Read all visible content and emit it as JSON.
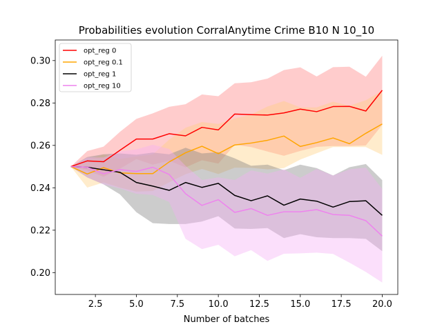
{
  "chart_data": {
    "type": "line",
    "title": "Probabilities evolution CorralAnytime Crime B10 N 10_10",
    "xlabel": "Number of batches",
    "ylabel": "",
    "xlim": [
      0.05,
      20.95
    ],
    "ylim": [
      0.1897,
      0.3097
    ],
    "xticks": [
      2.5,
      5.0,
      7.5,
      10.0,
      12.5,
      15.0,
      17.5,
      20.0
    ],
    "xtick_labels": [
      "2.5",
      "5.0",
      "7.5",
      "10.0",
      "12.5",
      "15.0",
      "17.5",
      "20.0"
    ],
    "yticks": [
      0.2,
      0.22,
      0.24,
      0.26,
      0.28,
      0.3
    ],
    "ytick_labels": [
      "0.20",
      "0.22",
      "0.24",
      "0.26",
      "0.28",
      "0.30"
    ],
    "grid": false,
    "legend_position": "top-left",
    "x": [
      1,
      2,
      3,
      4,
      5,
      6,
      7,
      8,
      9,
      10,
      11,
      12,
      13,
      14,
      15,
      16,
      17,
      18,
      19,
      20
    ],
    "series": [
      {
        "name": "opt_reg 0",
        "color": "#ff0000",
        "band_color": "#ff8080",
        "values": [
          0.25,
          0.2527,
          0.2523,
          0.2577,
          0.263,
          0.263,
          0.2655,
          0.2645,
          0.2685,
          0.2673,
          0.2748,
          0.2745,
          0.2743,
          0.2753,
          0.2771,
          0.2759,
          0.2783,
          0.2784,
          0.2762,
          0.286
        ],
        "upper": [
          0.25,
          0.2573,
          0.2594,
          0.2664,
          0.2725,
          0.2751,
          0.2782,
          0.2794,
          0.284,
          0.2832,
          0.2893,
          0.2898,
          0.2915,
          0.2955,
          0.2968,
          0.2925,
          0.2969,
          0.2971,
          0.2924,
          0.3023
        ],
        "lower": [
          0.25,
          0.2481,
          0.2452,
          0.249,
          0.2535,
          0.2509,
          0.2528,
          0.2496,
          0.253,
          0.2514,
          0.2603,
          0.2592,
          0.2571,
          0.2551,
          0.2574,
          0.2593,
          0.2597,
          0.2597,
          0.26,
          0.2697
        ]
      },
      {
        "name": "opt_reg 0.1",
        "color": "#ffa500",
        "band_color": "#ffd080",
        "values": [
          0.25,
          0.2465,
          0.2495,
          0.247,
          0.2467,
          0.2467,
          0.2522,
          0.2565,
          0.2596,
          0.2561,
          0.2602,
          0.2611,
          0.2624,
          0.2644,
          0.2595,
          0.2613,
          0.2635,
          0.2608,
          0.2657,
          0.2701
        ],
        "upper": [
          0.25,
          0.253,
          0.2558,
          0.2536,
          0.2548,
          0.2557,
          0.2627,
          0.2683,
          0.271,
          0.2701,
          0.2727,
          0.2745,
          0.2783,
          0.2809,
          0.2779,
          0.2779,
          0.2806,
          0.2787,
          0.2813,
          0.2857
        ],
        "lower": [
          0.25,
          0.2401,
          0.2425,
          0.2401,
          0.2382,
          0.2385,
          0.2426,
          0.2464,
          0.2489,
          0.2465,
          0.2495,
          0.2494,
          0.2487,
          0.2493,
          0.2533,
          0.2563,
          0.2592,
          0.2592,
          0.2592,
          0.2555
        ]
      },
      {
        "name": "opt_reg 1",
        "color": "#000000",
        "band_color": "#808080",
        "values": [
          0.25,
          0.2497,
          0.2485,
          0.2473,
          0.2425,
          0.2408,
          0.2388,
          0.2425,
          0.2402,
          0.2421,
          0.2364,
          0.2339,
          0.2362,
          0.2318,
          0.2347,
          0.2337,
          0.2309,
          0.2335,
          0.2339,
          0.227
        ],
        "upper": [
          0.25,
          0.2545,
          0.2558,
          0.2562,
          0.2556,
          0.2566,
          0.2558,
          0.2589,
          0.2562,
          0.2568,
          0.2539,
          0.2504,
          0.2509,
          0.2483,
          0.2509,
          0.2493,
          0.2458,
          0.2497,
          0.2512,
          0.2436
        ],
        "lower": [
          0.25,
          0.2449,
          0.2416,
          0.2369,
          0.2285,
          0.2233,
          0.2229,
          0.2229,
          0.2241,
          0.2266,
          0.2208,
          0.2206,
          0.221,
          0.2163,
          0.2181,
          0.2167,
          0.2163,
          0.2163,
          0.2159,
          0.2101
        ]
      },
      {
        "name": "opt_reg 10",
        "color": "#ee82ee",
        "band_color": "#f5b0f5",
        "values": [
          0.25,
          0.2497,
          0.2466,
          0.2486,
          0.2477,
          0.2497,
          0.2463,
          0.2372,
          0.2317,
          0.2344,
          0.2284,
          0.2302,
          0.227,
          0.2287,
          0.2287,
          0.2297,
          0.2274,
          0.227,
          0.2245,
          0.2172
        ],
        "upper": [
          0.25,
          0.2543,
          0.2543,
          0.2572,
          0.2581,
          0.2603,
          0.2583,
          0.2504,
          0.2437,
          0.2449,
          0.2437,
          0.2482,
          0.2467,
          0.2487,
          0.2447,
          0.2489,
          0.2458,
          0.2487,
          0.2495,
          0.2394
        ],
        "lower": [
          0.25,
          0.2449,
          0.2416,
          0.2397,
          0.2372,
          0.2366,
          0.2333,
          0.2159,
          0.2111,
          0.2131,
          0.2077,
          0.2106,
          0.2055,
          0.2089,
          0.2091,
          0.2094,
          0.2088,
          0.2047,
          0.2003,
          0.1953
        ]
      }
    ]
  }
}
